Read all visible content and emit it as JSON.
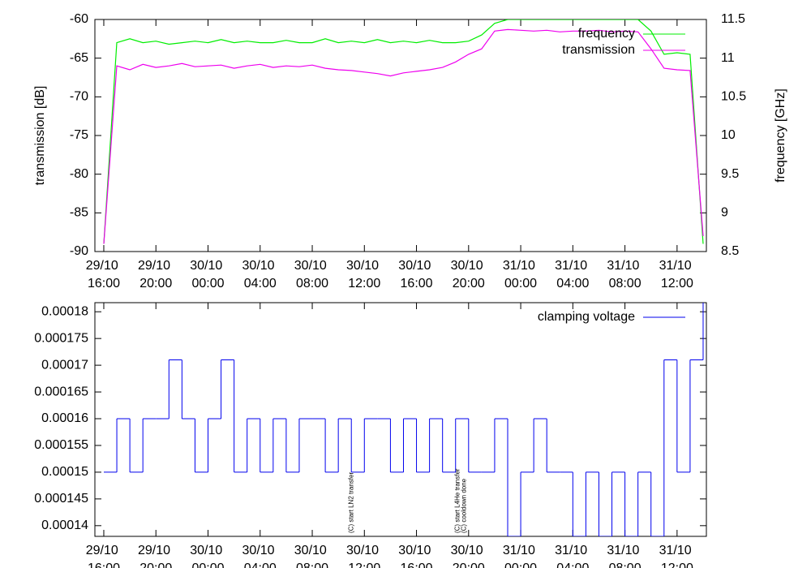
{
  "chart_data": [
    {
      "type": "line",
      "y_label": "transmission [dB]",
      "y2_label": "frequency [GHz]",
      "xlim": [
        "29/10 15:19",
        "31/10 14:15"
      ],
      "xticks": [
        "29/10 16:00",
        "29/10 20:00",
        "30/10 00:00",
        "30/10 04:00",
        "30/10 08:00",
        "30/10 12:00",
        "30/10 16:00",
        "30/10 20:00",
        "31/10 00:00",
        "31/10 04:00",
        "31/10 08:00",
        "31/10 12:00"
      ],
      "ylim": [
        -90,
        -60
      ],
      "yticks": [
        -90,
        -85,
        -80,
        -75,
        -70,
        -65,
        -60
      ],
      "y2lim": [
        8.5,
        11.5
      ],
      "y2ticks": [
        8.5,
        9,
        9.5,
        10,
        10.5,
        11,
        11.5
      ],
      "legend": "top right",
      "grid": false,
      "x": [
        "29/10 16:00",
        "29/10 17:00",
        "29/10 18:00",
        "29/10 19:00",
        "29/10 20:00",
        "29/10 21:00",
        "29/10 22:00",
        "29/10 23:00",
        "30/10 00:00",
        "30/10 01:00",
        "30/10 02:00",
        "30/10 03:00",
        "30/10 04:00",
        "30/10 05:00",
        "30/10 06:00",
        "30/10 07:00",
        "30/10 08:00",
        "30/10 09:00",
        "30/10 10:00",
        "30/10 11:00",
        "30/10 12:00",
        "30/10 13:00",
        "30/10 14:00",
        "30/10 15:00",
        "30/10 16:00",
        "30/10 17:00",
        "30/10 18:00",
        "30/10 19:00",
        "30/10 20:00",
        "30/10 21:00",
        "30/10 22:00",
        "30/10 23:00",
        "31/10 00:00",
        "31/10 01:00",
        "31/10 02:00",
        "31/10 03:00",
        "31/10 04:00",
        "31/10 05:00",
        "31/10 06:00",
        "31/10 07:00",
        "31/10 08:00",
        "31/10 09:00",
        "31/10 10:00",
        "31/10 11:00",
        "31/10 12:00",
        "31/10 13:00",
        "31/10 14:00"
      ],
      "series": [
        {
          "name": "frequency",
          "color": "#00ee00",
          "axis": "y2",
          "values": [
            8.6,
            11.2,
            11.25,
            11.2,
            11.22,
            11.18,
            11.2,
            11.22,
            11.2,
            11.24,
            11.2,
            11.22,
            11.2,
            11.2,
            11.23,
            11.2,
            11.2,
            11.25,
            11.2,
            11.22,
            11.2,
            11.24,
            11.2,
            11.22,
            11.2,
            11.23,
            11.2,
            11.2,
            11.22,
            11.3,
            11.45,
            11.5,
            11.5,
            11.5,
            11.5,
            11.5,
            11.5,
            11.5,
            11.5,
            11.5,
            11.5,
            11.5,
            11.35,
            11.05,
            11.07,
            11.05,
            8.6
          ]
        },
        {
          "name": "transmission",
          "color": "#ee00ee",
          "values": [
            -89,
            -66,
            -66.5,
            -65.8,
            -66.2,
            -66,
            -65.7,
            -66.1,
            -66,
            -65.9,
            -66.3,
            -66,
            -65.8,
            -66.2,
            -66,
            -66.1,
            -65.9,
            -66.3,
            -66.5,
            -66.6,
            -66.8,
            -67,
            -67.3,
            -66.9,
            -66.7,
            -66.5,
            -66.2,
            -65.5,
            -64.5,
            -63.8,
            -61.5,
            -61.3,
            -61.4,
            -61.5,
            -61.4,
            -61.6,
            -61.5,
            -61.5,
            -61.4,
            -61.6,
            -61.5,
            -61.6,
            -63.8,
            -66.3,
            -66.5,
            -66.6,
            -88
          ]
        }
      ]
    },
    {
      "type": "step",
      "xlim": [
        "29/10 15:19",
        "31/10 14:15"
      ],
      "xticks": [
        "29/10 16:00",
        "29/10 20:00",
        "30/10 00:00",
        "30/10 04:00",
        "30/10 08:00",
        "30/10 12:00",
        "30/10 16:00",
        "30/10 20:00",
        "31/10 00:00",
        "31/10 04:00",
        "31/10 08:00",
        "31/10 12:00"
      ],
      "ylim": [
        0.000138,
        0.0001817
      ],
      "yticks": [
        0.00014,
        0.000145,
        0.00015,
        0.000155,
        0.00016,
        0.000165,
        0.00017,
        0.000175,
        0.00018
      ],
      "legend": "top right",
      "grid": false,
      "x": [
        "29/10 16:00",
        "29/10 17:00",
        "29/10 18:00",
        "29/10 19:00",
        "29/10 20:00",
        "29/10 21:00",
        "29/10 22:00",
        "29/10 23:00",
        "30/10 00:00",
        "30/10 01:00",
        "30/10 02:00",
        "30/10 03:00",
        "30/10 04:00",
        "30/10 05:00",
        "30/10 06:00",
        "30/10 07:00",
        "30/10 08:00",
        "30/10 09:00",
        "30/10 10:00",
        "30/10 11:00",
        "30/10 12:00",
        "30/10 13:00",
        "30/10 14:00",
        "30/10 15:00",
        "30/10 16:00",
        "30/10 17:00",
        "30/10 18:00",
        "30/10 19:00",
        "30/10 20:00",
        "30/10 21:00",
        "30/10 22:00",
        "30/10 23:00",
        "31/10 00:00",
        "31/10 01:00",
        "31/10 02:00",
        "31/10 03:00",
        "31/10 04:00",
        "31/10 05:00",
        "31/10 06:00",
        "31/10 07:00",
        "31/10 08:00",
        "31/10 09:00",
        "31/10 10:00",
        "31/10 11:00",
        "31/10 12:00",
        "31/10 13:00",
        "31/10 14:00"
      ],
      "series": [
        {
          "name": "clamping voltage",
          "color": "#0000ee",
          "values": [
            0.00015,
            0.00016,
            0.00015,
            0.00016,
            0.00016,
            0.000171,
            0.00016,
            0.00015,
            0.00016,
            0.000171,
            0.00015,
            0.00016,
            0.00015,
            0.00016,
            0.00015,
            0.00016,
            0.00016,
            0.00015,
            0.00016,
            0.00015,
            0.00016,
            0.00016,
            0.00015,
            0.00016,
            0.00015,
            0.00016,
            0.00015,
            0.00016,
            0.00015,
            0.00015,
            0.00016,
            0.000138,
            0.00015,
            0.00016,
            0.00015,
            0.00015,
            0.000138,
            0.00015,
            0.000138,
            0.00015,
            0.000138,
            0.00015,
            0.000138,
            0.000171,
            0.00015,
            0.000171,
            0.000182
          ]
        }
      ],
      "annotations": [
        {
          "x": "30/10 11:00",
          "text": "(C) start LN2 transfer"
        },
        {
          "x": "30/10 19:10",
          "text": "(C) start L4He transfer"
        },
        {
          "x": "30/10 19:40",
          "text": "(C) cooldown done"
        }
      ]
    }
  ]
}
